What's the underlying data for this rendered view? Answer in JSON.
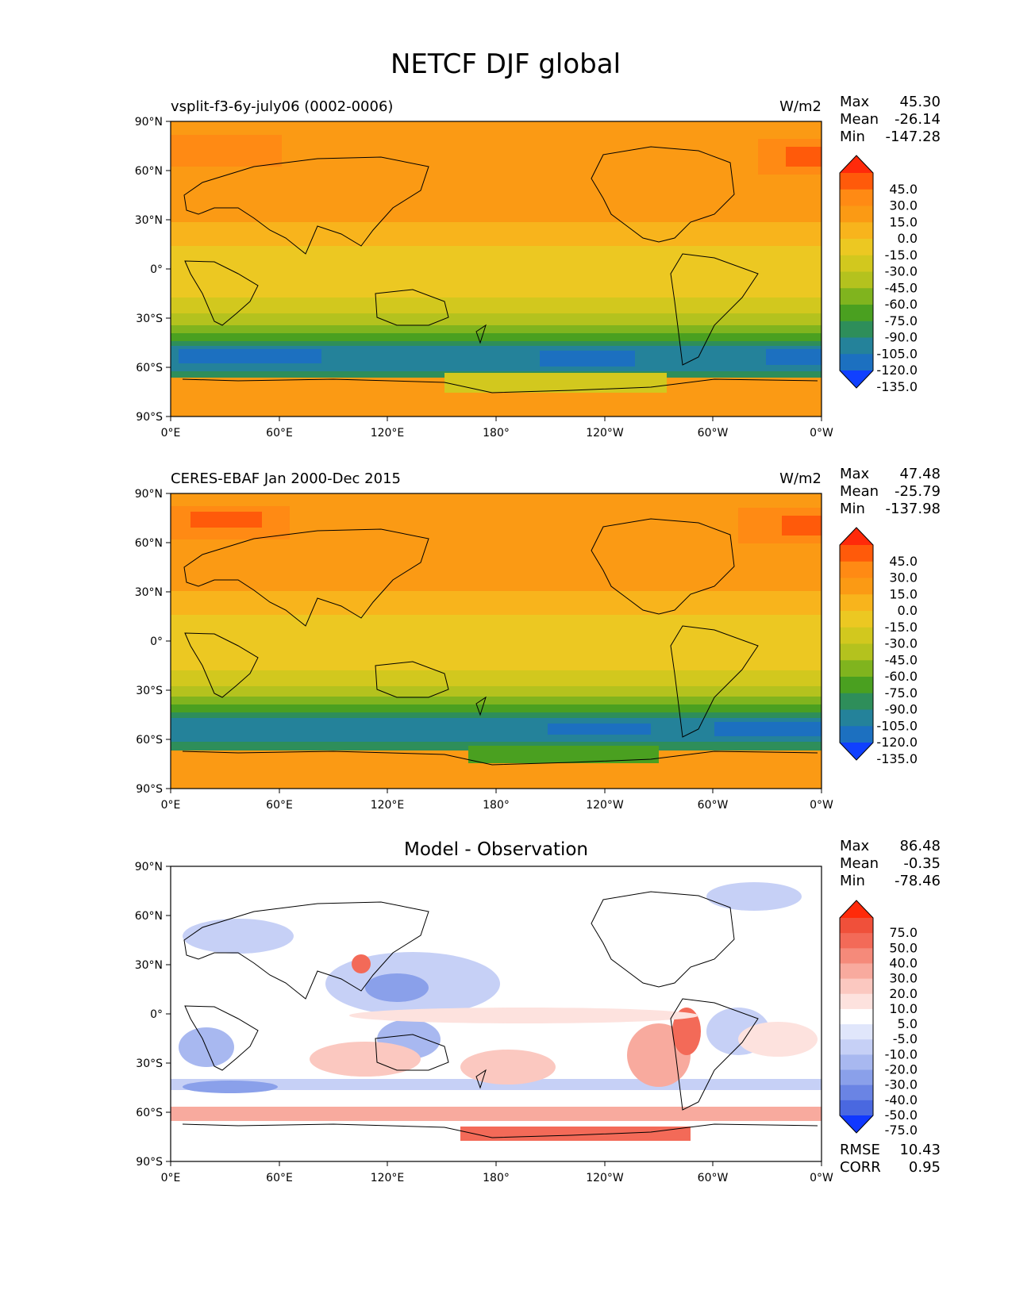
{
  "title": "NETCF DJF global",
  "x_ticks": [
    "0°E",
    "60°E",
    "120°E",
    "180°",
    "120°W",
    "60°W",
    "0°W"
  ],
  "y_ticks": [
    "90°N",
    "60°N",
    "30°N",
    "0°",
    "30°S",
    "60°S",
    "90°S"
  ],
  "panels": [
    {
      "id": "model",
      "left_title": "vsplit-f3-6y-july06 (0002-0006)",
      "center_title": "",
      "units": "W/m2",
      "stats": [
        {
          "label": "Max",
          "value": "45.30"
        },
        {
          "label": "Mean",
          "value": "-26.14"
        },
        {
          "label": "Min",
          "value": "-147.28"
        }
      ],
      "colorbar": {
        "levels": [
          "45.0",
          "30.0",
          "15.0",
          "0.0",
          "-15.0",
          "-30.0",
          "-45.0",
          "-60.0",
          "-75.0",
          "-90.0",
          "-105.0",
          "-120.0",
          "-135.0"
        ],
        "colors": [
          "#ff2a0a",
          "#ff5a0a",
          "#ff8a14",
          "#fb9a14",
          "#f8b41c",
          "#ecc822",
          "#d2c81e",
          "#b4c21e",
          "#80b41e",
          "#4aa020",
          "#2e8e5a",
          "#24829a",
          "#1c70c0",
          "#1040ff"
        ]
      },
      "extra_stats": []
    },
    {
      "id": "observation",
      "left_title": "CERES-EBAF Jan 2000-Dec 2015",
      "center_title": "",
      "units": "W/m2",
      "stats": [
        {
          "label": "Max",
          "value": "47.48"
        },
        {
          "label": "Mean",
          "value": "-25.79"
        },
        {
          "label": "Min",
          "value": "-137.98"
        }
      ],
      "colorbar": {
        "levels": [
          "45.0",
          "30.0",
          "15.0",
          "0.0",
          "-15.0",
          "-30.0",
          "-45.0",
          "-60.0",
          "-75.0",
          "-90.0",
          "-105.0",
          "-120.0",
          "-135.0"
        ],
        "colors": [
          "#ff2a0a",
          "#ff5a0a",
          "#ff8a14",
          "#fb9a14",
          "#f8b41c",
          "#ecc822",
          "#d2c81e",
          "#b4c21e",
          "#80b41e",
          "#4aa020",
          "#2e8e5a",
          "#24829a",
          "#1c70c0",
          "#1040ff"
        ]
      },
      "extra_stats": []
    },
    {
      "id": "difference",
      "left_title": "",
      "center_title": "Model - Observation",
      "units": "",
      "stats": [
        {
          "label": "Max",
          "value": "86.48"
        },
        {
          "label": "Mean",
          "value": "-0.35"
        },
        {
          "label": "Min",
          "value": "-78.46"
        }
      ],
      "colorbar": {
        "levels": [
          "75.0",
          "50.0",
          "40.0",
          "30.0",
          "20.0",
          "10.0",
          "5.0",
          "-5.0",
          "-10.0",
          "-20.0",
          "-30.0",
          "-40.0",
          "-50.0",
          "-75.0"
        ],
        "colors": [
          "#ff2a0a",
          "#f0503a",
          "#f36a58",
          "#f58a7a",
          "#f8aa9e",
          "#fbc8c0",
          "#fde2de",
          "#ffffff",
          "#e0e6fb",
          "#c6d0f6",
          "#a8b8f0",
          "#8aa0ea",
          "#6a84e4",
          "#4a68e0",
          "#1038ff"
        ]
      },
      "extra_stats": [
        {
          "label": "RMSE",
          "value": "10.43"
        },
        {
          "label": "CORR",
          "value": "0.95"
        }
      ]
    }
  ]
}
